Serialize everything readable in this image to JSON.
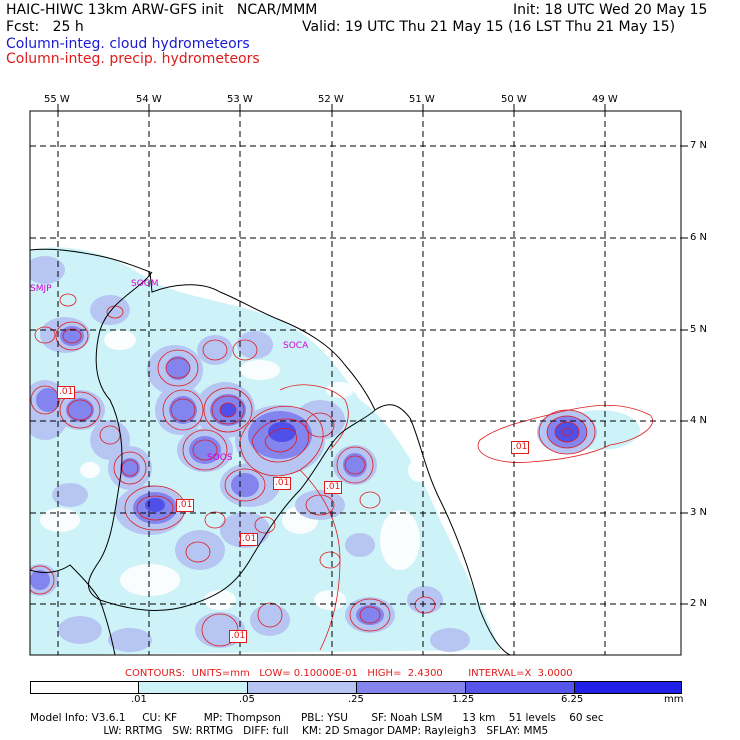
{
  "header": {
    "line1_left": "HAIC-HIWC 13km ARW-GFS init   NCAR/MMM",
    "line1_right": "Init: 18 UTC Wed 20 May 15",
    "line2_left": "Fcst:   25 h",
    "line2_right": "Valid: 19 UTC Thu 21 May 15 (16 LST Thu 21 May 15)",
    "line3": "Column-integ. cloud hydrometeors",
    "line4": "Column-integ. precip. hydrometeors"
  },
  "map": {
    "lon_labels": [
      "55 W",
      "54 W",
      "53 W",
      "52 W",
      "51 W",
      "50 W",
      "49 W"
    ],
    "lat_labels": [
      "7 N",
      "6 N",
      "5 N",
      "4 N",
      "3 N",
      "2 N"
    ],
    "stations": [
      "SMJP",
      "SOGM",
      "SOCA",
      "SOOS"
    ],
    "contour_labels": [
      ".01",
      ".01",
      ".01",
      ".01",
      ".01",
      ".01",
      ".01"
    ]
  },
  "footer": {
    "contours_line": "CONTOURS:  UNITS=mm   LOW= 0.10000E-01   HIGH=  2.4300        INTERVAL=X  3.0000",
    "colorbar_ticks": [
      ".01",
      ".05",
      ".25",
      "1.25",
      "6.25",
      "mm"
    ],
    "colorbar_colors": [
      "#ffffff",
      "#cdf3f8",
      "#b6c5f2",
      "#9a9af0",
      "#6060ee",
      "#2020e6"
    ],
    "model_line1": "Model Info: V3.6.1     CU: KF        MP: Thompson      PBL: YSU       SF: Noah LSM      13 km    51 levels    60 sec",
    "model_line2": "                      LW: RRTMG   SW: RRTMG   DIFF: full    KM: 2D Smagor DAMP: Rayleigh3   SFLAY: MM5"
  }
}
